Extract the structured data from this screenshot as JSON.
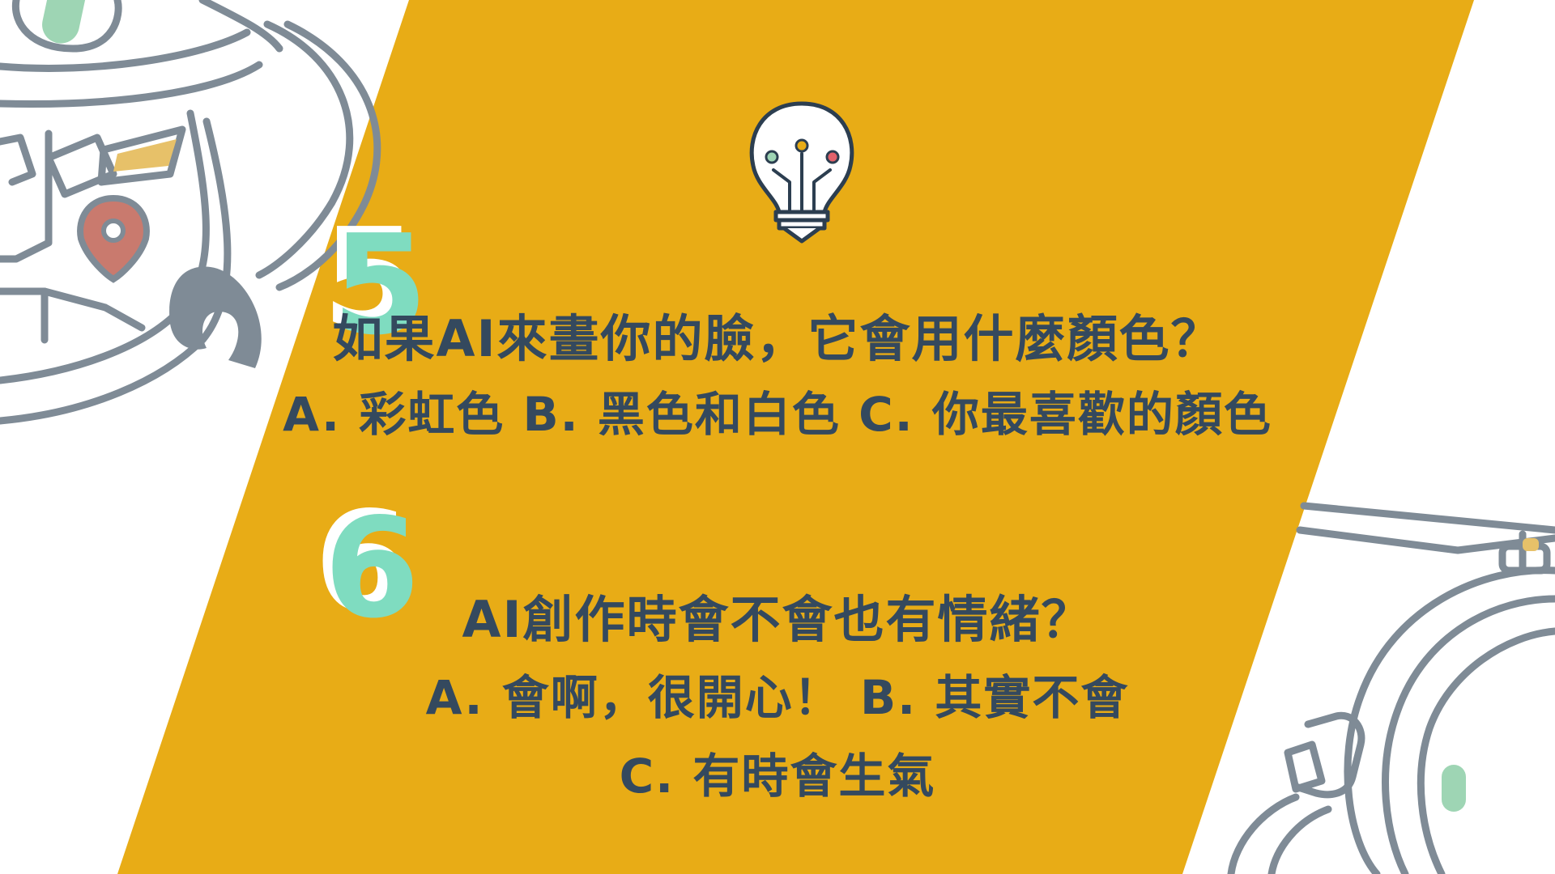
{
  "colors": {
    "background": "#ffffff",
    "banner": "#e8ac16",
    "text": "#34495e",
    "outline": "#7f8b96",
    "accent_mint": "#7fdcc0",
    "accent_green": "#9ed5b4",
    "accent_tan": "#e7c169",
    "accent_red": "#e2626b",
    "pin_red": "#c97a6e"
  },
  "icons": {
    "lightbulb": "lightbulb-circuit-icon",
    "location": "location-pin-icon"
  },
  "question5": {
    "number": "5",
    "title": "如果AI來畫你的臉，它會用什麼顏色？",
    "options": "A.  彩虹色  B.  黑色和白色  C.  你最喜歡的顏色"
  },
  "question6": {
    "number": "6",
    "title": "AI創作時會不會也有情緒？",
    "options_line1": "A.  會啊，很開心！  B.  其實不會",
    "options_line2": "C.  有時會生氣"
  }
}
